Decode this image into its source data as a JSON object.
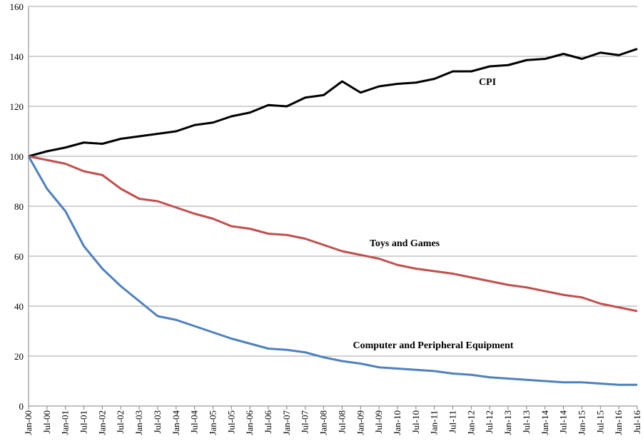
{
  "chart_data": {
    "type": "line",
    "categories": [
      "Jan-00",
      "Jul-00",
      "Jan-01",
      "Jul-01",
      "Jan-02",
      "Jul-02",
      "Jan-03",
      "Jul-03",
      "Jan-04",
      "Jul-04",
      "Jan-05",
      "Jul-05",
      "Jan-06",
      "Jul-06",
      "Jan-07",
      "Jul-07",
      "Jan-08",
      "Jul-08",
      "Jan-09",
      "Jul-09",
      "Jan-10",
      "Jul-10",
      "Jan-11",
      "Jul-11",
      "Jan-12",
      "Jul-12",
      "Jan-13",
      "Jul-13",
      "Jan-14",
      "Jul-14",
      "Jan-15",
      "Jul-15",
      "Jan-16",
      "Jul-16"
    ],
    "series": [
      {
        "name": "CPI",
        "color": "#000000",
        "values": [
          100,
          102,
          103.5,
          105.5,
          105,
          107,
          108,
          109,
          110,
          112.5,
          113.5,
          116,
          117.5,
          120.5,
          120,
          123.5,
          124.5,
          130,
          125.5,
          128,
          129,
          129.5,
          131,
          134,
          134,
          136,
          136.5,
          138.5,
          139,
          141,
          139,
          141.5,
          140.5,
          143
        ]
      },
      {
        "name": "Toys and Games",
        "color": "#c0504d",
        "values": [
          100,
          98.5,
          97,
          94,
          92.5,
          87,
          83,
          82,
          79.5,
          77,
          75,
          72,
          71,
          69,
          68.5,
          67,
          64.5,
          62,
          60.5,
          59,
          56.5,
          55,
          54,
          53,
          51.5,
          50,
          48.5,
          47.5,
          46,
          44.5,
          43.5,
          41,
          39.5,
          38
        ]
      },
      {
        "name": "Computer and Peripheral Equipment",
        "color": "#4f81bd",
        "values": [
          100,
          87,
          78,
          64,
          55,
          48,
          42,
          36,
          34.5,
          32,
          29.5,
          27,
          25,
          23,
          22.5,
          21.5,
          19.5,
          18,
          17,
          15.5,
          15,
          14.5,
          14,
          13,
          12.5,
          11.5,
          11,
          10.5,
          10,
          9.5,
          9.5,
          9,
          8.5,
          8.5
        ]
      }
    ],
    "ylim": [
      0,
      160
    ],
    "yticks": [
      0,
      20,
      40,
      60,
      80,
      100,
      120,
      140,
      160
    ],
    "grid": true
  }
}
